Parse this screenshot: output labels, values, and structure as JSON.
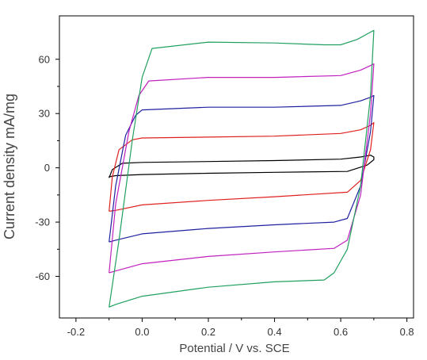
{
  "chart_data": {
    "type": "line",
    "xlabel": "Potential / V vs. SCE",
    "ylabel": "Current density    mA/mg",
    "xlim": [
      -0.25,
      0.82
    ],
    "ylim": [
      -83,
      84
    ],
    "xticks": [
      -0.2,
      0.0,
      0.2,
      0.4,
      0.6,
      0.8
    ],
    "xtick_labels": [
      "-0.2",
      "0.0",
      "0.2",
      "0.4",
      "0.6",
      "0.8"
    ],
    "yticks": [
      -60,
      -30,
      0,
      30,
      60
    ],
    "ytick_labels": [
      "-60",
      "-30",
      "0",
      "30",
      "60"
    ],
    "grid": false,
    "series": [
      {
        "color": "#000000",
        "x": [
          -0.1,
          -0.09,
          -0.06,
          0.0,
          0.2,
          0.4,
          0.6,
          0.66,
          0.69,
          0.7,
          0.7,
          0.68,
          0.62,
          0.4,
          0.2,
          0.0,
          -0.08,
          -0.1,
          -0.1
        ],
        "y": [
          -5.5,
          -1.0,
          2.5,
          3.0,
          3.5,
          4.0,
          4.8,
          6.0,
          7.0,
          6.0,
          4.5,
          1.5,
          -2.0,
          -2.5,
          -3.0,
          -3.7,
          -4.3,
          -5.0,
          -5.5
        ]
      },
      {
        "color": "#e02020",
        "x": [
          -0.1,
          -0.09,
          -0.07,
          -0.03,
          0.0,
          0.2,
          0.4,
          0.6,
          0.66,
          0.69,
          0.7,
          0.69,
          0.66,
          0.62,
          0.4,
          0.2,
          0.0,
          -0.08,
          -0.1
        ],
        "y": [
          -24.0,
          -5.0,
          10.0,
          15.5,
          16.5,
          17.0,
          17.5,
          19.0,
          21.0,
          23.5,
          25.0,
          10.0,
          -7.0,
          -13.5,
          -16.0,
          -18.0,
          -20.5,
          -23.5,
          -24.0
        ]
      },
      {
        "color": "#2020a0",
        "x": [
          -0.1,
          -0.08,
          -0.05,
          -0.02,
          0.0,
          0.2,
          0.4,
          0.6,
          0.66,
          0.69,
          0.7,
          0.69,
          0.66,
          0.62,
          0.58,
          0.4,
          0.2,
          0.0,
          -0.08,
          -0.1
        ],
        "y": [
          -41.0,
          -10.0,
          18.0,
          29.0,
          32.0,
          33.5,
          33.5,
          34.5,
          37.0,
          39.0,
          40.0,
          20.0,
          -10.0,
          -28.0,
          -30.0,
          -31.5,
          -33.5,
          -36.5,
          -40.0,
          -41.0
        ]
      },
      {
        "color": "#c020c0",
        "x": [
          -0.1,
          -0.08,
          -0.04,
          -0.01,
          0.02,
          0.2,
          0.4,
          0.6,
          0.66,
          0.69,
          0.7,
          0.69,
          0.66,
          0.62,
          0.58,
          0.4,
          0.2,
          0.0,
          -0.08,
          -0.1
        ],
        "y": [
          -58.0,
          -20.0,
          20.0,
          40.0,
          48.0,
          50.0,
          50.0,
          51.0,
          54.0,
          56.5,
          57.5,
          30.0,
          -15.0,
          -40.0,
          -44.5,
          -46.5,
          -49.0,
          -53.0,
          -57.0,
          -58.0
        ]
      },
      {
        "color": "#20a060",
        "x": [
          -0.1,
          -0.07,
          -0.03,
          0.0,
          0.03,
          0.2,
          0.4,
          0.55,
          0.6,
          0.65,
          0.69,
          0.7,
          0.69,
          0.66,
          0.62,
          0.58,
          0.55,
          0.4,
          0.2,
          0.0,
          -0.08,
          -0.1
        ],
        "y": [
          -77.0,
          -40.0,
          15.0,
          50.0,
          66.0,
          69.5,
          69.0,
          68.0,
          68.0,
          71.0,
          75.0,
          76.0,
          40.0,
          -10.0,
          -45.0,
          -58.0,
          -62.0,
          -63.0,
          -66.0,
          -71.0,
          -75.5,
          -77.0
        ]
      }
    ]
  }
}
